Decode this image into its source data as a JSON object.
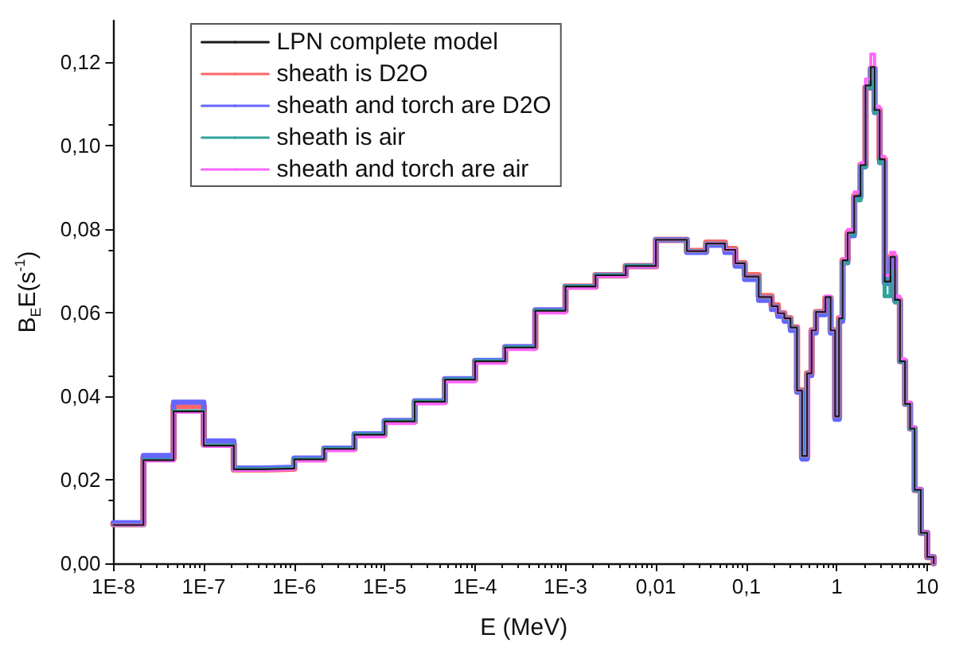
{
  "chart_data": {
    "type": "step",
    "xlabel": "E (MeV)",
    "ylabel": "B$_{E}$E(s$^{-1}$)",
    "log": "x",
    "grid": false,
    "legend": "top left",
    "marker": "none",
    "line_style": "solid",
    "xlim": [
      1e-08,
      12
    ],
    "ylim": [
      0,
      0.13
    ],
    "xticks": [
      {
        "value": 1e-08,
        "label": "1E-8"
      },
      {
        "value": 1e-07,
        "label": "1E-7"
      },
      {
        "value": 1e-06,
        "label": "1E-6"
      },
      {
        "value": 1e-05,
        "label": "1E-5"
      },
      {
        "value": 0.0001,
        "label": "1E-4"
      },
      {
        "value": 0.001,
        "label": "1E-3"
      },
      {
        "value": 0.01,
        "label": "0,01"
      },
      {
        "value": 0.1,
        "label": "0,1"
      },
      1,
      10
    ],
    "yticks": [
      {
        "value": 0,
        "label": "0,00"
      },
      {
        "value": 0.02,
        "label": "0,02"
      },
      {
        "value": 0.04,
        "label": "0,04"
      },
      {
        "value": 0.06,
        "label": "0,06"
      },
      {
        "value": 0.08,
        "label": "0,08"
      },
      {
        "value": 0.1,
        "label": "0,10"
      },
      {
        "value": 0.12,
        "label": "0,12"
      }
    ],
    "x": [
      1e-08,
      2.15e-08,
      4.64e-08,
      1e-07,
      2.15e-07,
      4.64e-07,
      1e-06,
      2.15e-06,
      4.64e-06,
      1e-05,
      2.15e-05,
      4.64e-05,
      0.0001,
      0.000215,
      0.000464,
      0.001,
      0.00215,
      0.00464,
      0.01,
      0.022,
      0.036,
      0.058,
      0.0755,
      0.096,
      0.137,
      0.19,
      0.223,
      0.263,
      0.308,
      0.363,
      0.413,
      0.47,
      0.527,
      0.59,
      0.75,
      0.855,
      0.96,
      1.06,
      1.16,
      1.32,
      1.56,
      1.83,
      2.08,
      2.38,
      2.62,
      2.98,
      3.39,
      3.93,
      4.4,
      5.0,
      5.69,
      6.47,
      7.26,
      8.5,
      10,
      11.8
    ],
    "series": [
      {
        "name": "LPN complete model",
        "color": "#1a1a1a",
        "values": [
          0.0092,
          0.0247,
          0.0364,
          0.0282,
          0.0225,
          0.0227,
          0.0249,
          0.0274,
          0.0308,
          0.034,
          0.0387,
          0.044,
          0.0484,
          0.0517,
          0.0605,
          0.0663,
          0.069,
          0.0712,
          0.0775,
          0.0748,
          0.0766,
          0.0751,
          0.0719,
          0.0687,
          0.0638,
          0.0616,
          0.0599,
          0.0587,
          0.0565,
          0.0414,
          0.0257,
          0.0455,
          0.0558,
          0.0602,
          0.0638,
          0.0558,
          0.0352,
          0.0587,
          0.0726,
          0.0792,
          0.088,
          0.0954,
          0.1145,
          0.1189,
          0.1086,
          0.0968,
          0.0675,
          0.0734,
          0.0631,
          0.0484,
          0.0382,
          0.0323,
          0.0176,
          0.0073,
          0.0015,
          0
        ]
      },
      {
        "name": "sheath is D2O",
        "color": "#ff6666",
        "values": [
          0.0094,
          0.0252,
          0.0377,
          0.0285,
          0.0225,
          0.0227,
          0.0249,
          0.0274,
          0.0308,
          0.034,
          0.0387,
          0.044,
          0.0484,
          0.0517,
          0.0605,
          0.0663,
          0.069,
          0.0712,
          0.0775,
          0.0748,
          0.0768,
          0.0753,
          0.0719,
          0.069,
          0.064,
          0.0618,
          0.0599,
          0.0587,
          0.0565,
          0.0414,
          0.0255,
          0.0455,
          0.0558,
          0.0602,
          0.0635,
          0.0558,
          0.035,
          0.0587,
          0.0726,
          0.0792,
          0.088,
          0.0954,
          0.114,
          0.1185,
          0.1086,
          0.0968,
          0.0675,
          0.0734,
          0.0631,
          0.0484,
          0.0382,
          0.0323,
          0.0176,
          0.0073,
          0.0015,
          0
        ]
      },
      {
        "name": "sheath and torch are D2O",
        "color": "#6666ff",
        "values": [
          0.0097,
          0.0258,
          0.0386,
          0.0293,
          0.0228,
          0.023,
          0.0252,
          0.0276,
          0.031,
          0.0342,
          0.0389,
          0.0442,
          0.0486,
          0.0519,
          0.0607,
          0.0663,
          0.069,
          0.0712,
          0.0775,
          0.0745,
          0.0762,
          0.0745,
          0.0712,
          0.068,
          0.063,
          0.0608,
          0.0592,
          0.058,
          0.0558,
          0.041,
          0.025,
          0.045,
          0.0552,
          0.0596,
          0.063,
          0.0552,
          0.0345,
          0.058,
          0.072,
          0.0785,
          0.0875,
          0.095,
          0.114,
          0.1185,
          0.108,
          0.096,
          0.067,
          0.073,
          0.0628,
          0.0484,
          0.0382,
          0.0323,
          0.0176,
          0.0073,
          0.0015,
          0
        ]
      },
      {
        "name": "sheath is air",
        "color": "#33a39a",
        "values": [
          0.0092,
          0.0247,
          0.0364,
          0.0282,
          0.0225,
          0.0227,
          0.0249,
          0.0274,
          0.0308,
          0.034,
          0.0387,
          0.044,
          0.0484,
          0.0517,
          0.0605,
          0.0663,
          0.069,
          0.0712,
          0.0775,
          0.0748,
          0.0766,
          0.0751,
          0.0719,
          0.0687,
          0.0638,
          0.0616,
          0.0599,
          0.0587,
          0.0565,
          0.0414,
          0.0257,
          0.0455,
          0.0558,
          0.0602,
          0.0638,
          0.0558,
          0.0352,
          0.0587,
          0.072,
          0.0788,
          0.087,
          0.095,
          0.114,
          0.118,
          0.108,
          0.096,
          0.064,
          0.07,
          0.0625,
          0.0484,
          0.0382,
          0.0323,
          0.0176,
          0.0073,
          0.0015,
          0
        ]
      },
      {
        "name": "sheath and torch are air",
        "color": "#ff66ff",
        "values": [
          0.0092,
          0.0245,
          0.0362,
          0.028,
          0.0223,
          0.0225,
          0.0245,
          0.027,
          0.0303,
          0.0335,
          0.0382,
          0.0435,
          0.0479,
          0.0512,
          0.06,
          0.066,
          0.0688,
          0.071,
          0.0775,
          0.0748,
          0.0766,
          0.0751,
          0.0719,
          0.0687,
          0.0638,
          0.0616,
          0.0599,
          0.0587,
          0.0565,
          0.0414,
          0.0257,
          0.0455,
          0.0558,
          0.0602,
          0.064,
          0.0558,
          0.0352,
          0.059,
          0.073,
          0.08,
          0.089,
          0.096,
          0.116,
          0.122,
          0.1095,
          0.0975,
          0.069,
          0.0745,
          0.064,
          0.049,
          0.0385,
          0.0325,
          0.0178,
          0.0074,
          0.0015,
          0
        ]
      }
    ]
  }
}
